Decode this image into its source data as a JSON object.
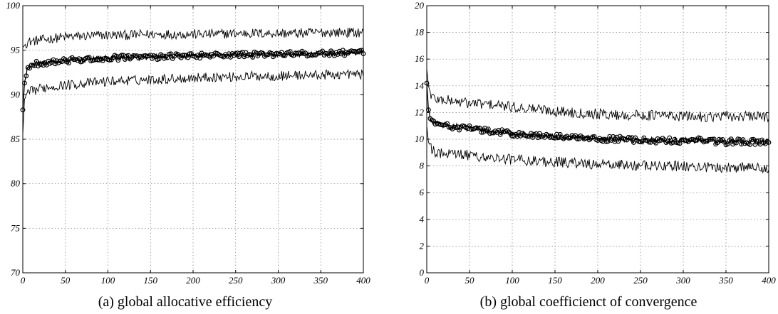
{
  "chart_data": [
    {
      "type": "line",
      "caption": "(a) global allocative efficiency",
      "xlim": [
        0,
        400
      ],
      "ylim": [
        70,
        100
      ],
      "xticks": [
        "0",
        "50",
        "100",
        "150",
        "200",
        "250",
        "300",
        "350",
        "400"
      ],
      "yticks": [
        "70",
        "75",
        "80",
        "85",
        "90",
        "95",
        "100"
      ],
      "grid": true,
      "series": [
        {
          "role": "upper",
          "x": [
            0,
            5,
            10,
            25,
            50,
            75,
            100,
            125,
            150,
            175,
            200,
            225,
            250,
            275,
            300,
            325,
            350,
            375,
            400
          ],
          "values": [
            95.3,
            95.9,
            96.0,
            96.2,
            96.5,
            96.6,
            96.7,
            96.7,
            96.8,
            96.8,
            96.8,
            96.8,
            96.9,
            96.9,
            96.9,
            96.9,
            97.0,
            97.0,
            97.0
          ]
        },
        {
          "role": "mean",
          "x": [
            0,
            2,
            5,
            10,
            25,
            50,
            75,
            100,
            125,
            150,
            175,
            200,
            225,
            250,
            275,
            300,
            325,
            350,
            375,
            400
          ],
          "values": [
            88.3,
            91.3,
            92.8,
            93.4,
            93.6,
            93.8,
            94.0,
            94.1,
            94.2,
            94.2,
            94.3,
            94.4,
            94.4,
            94.5,
            94.5,
            94.5,
            94.6,
            94.6,
            94.7,
            94.7
          ]
        },
        {
          "role": "lower",
          "x": [
            0,
            2,
            5,
            10,
            25,
            50,
            75,
            100,
            125,
            150,
            175,
            200,
            225,
            250,
            275,
            300,
            325,
            350,
            375,
            400
          ],
          "values": [
            85.5,
            89.5,
            90.0,
            90.4,
            90.8,
            91.1,
            91.3,
            91.5,
            91.6,
            91.7,
            91.8,
            91.9,
            92.0,
            92.0,
            92.1,
            92.1,
            92.2,
            92.2,
            92.3,
            92.3
          ]
        }
      ]
    },
    {
      "type": "line",
      "caption": "(b) global coefficienct of convergence",
      "xlim": [
        0,
        400
      ],
      "ylim": [
        0,
        20
      ],
      "xticks": [
        "0",
        "50",
        "100",
        "150",
        "200",
        "250",
        "300",
        "350",
        "400"
      ],
      "yticks": [
        "0",
        "2",
        "4",
        "6",
        "8",
        "10",
        "12",
        "14",
        "16",
        "18",
        "20"
      ],
      "grid": true,
      "series": [
        {
          "role": "upper",
          "x": [
            0,
            2,
            5,
            10,
            25,
            50,
            75,
            100,
            125,
            150,
            175,
            200,
            225,
            250,
            275,
            300,
            325,
            350,
            375,
            400
          ],
          "values": [
            15.3,
            14.0,
            13.3,
            13.0,
            12.9,
            12.7,
            12.6,
            12.4,
            12.3,
            12.1,
            12.0,
            11.9,
            11.8,
            11.8,
            11.8,
            11.7,
            11.7,
            11.7,
            11.7,
            11.7
          ]
        },
        {
          "role": "mean",
          "x": [
            0,
            2,
            5,
            10,
            25,
            50,
            75,
            100,
            125,
            150,
            175,
            200,
            225,
            250,
            275,
            300,
            325,
            350,
            375,
            400
          ],
          "values": [
            14.2,
            12.2,
            11.5,
            11.2,
            11.0,
            10.8,
            10.6,
            10.4,
            10.3,
            10.2,
            10.1,
            10.0,
            10.0,
            9.9,
            9.9,
            9.9,
            9.9,
            9.8,
            9.8,
            9.8
          ]
        },
        {
          "role": "lower",
          "x": [
            0,
            2,
            5,
            10,
            25,
            50,
            75,
            100,
            125,
            150,
            175,
            200,
            225,
            250,
            275,
            300,
            325,
            350,
            375,
            400
          ],
          "values": [
            11.0,
            9.8,
            9.3,
            9.0,
            8.9,
            8.8,
            8.6,
            8.5,
            8.4,
            8.3,
            8.2,
            8.1,
            8.1,
            8.0,
            8.0,
            8.0,
            7.9,
            7.9,
            7.9,
            7.9
          ]
        }
      ]
    }
  ]
}
